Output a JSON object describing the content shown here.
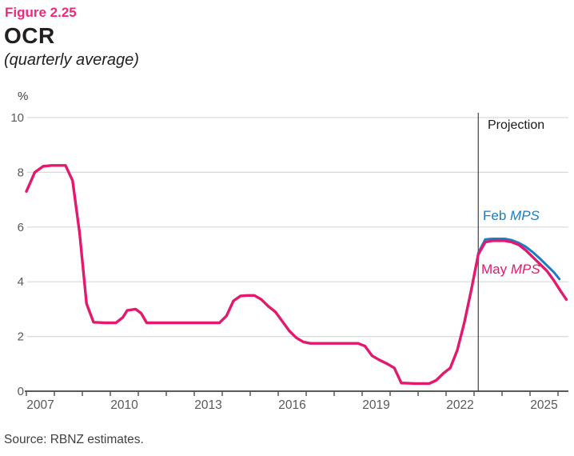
{
  "figure": {
    "number": "Figure 2.25",
    "source": "Source: RBNZ estimates."
  },
  "colors": {
    "figure_number": "#ee2a7b",
    "title_text": "#231f20",
    "axis_text": "#58595b",
    "axis_line": "#58595b",
    "gridline": "#d9d9d9",
    "projection_line": "#414042",
    "feb_mps_blue": "#1b7dc4",
    "may_mps_pink": "#e4186c"
  },
  "chart_data": {
    "type": "line",
    "title": "OCR",
    "subtitle": "(quarterly average)",
    "ylabel": "%",
    "ylim": [
      0,
      10
    ],
    "y_ticks": [
      0,
      2,
      4,
      6,
      8,
      10
    ],
    "xlim": [
      2006.95,
      2026.4
    ],
    "x_ticks_years": [
      2007,
      2008,
      2009,
      2010,
      2011,
      2012,
      2013,
      2014,
      2015,
      2016,
      2017,
      2018,
      2019,
      2020,
      2021,
      2022,
      2023,
      2024,
      2025,
      2026
    ],
    "x_labels": [
      {
        "year": 2007,
        "label": "2007"
      },
      {
        "year": 2010,
        "label": "2010"
      },
      {
        "year": 2013,
        "label": "2013"
      },
      {
        "year": 2016,
        "label": "2016"
      },
      {
        "year": 2019,
        "label": "2019"
      },
      {
        "year": 2022,
        "label": "2022"
      },
      {
        "year": 2025,
        "label": "2025"
      }
    ],
    "grid": "horizontal",
    "legend_position": "inline-annotations",
    "projection": {
      "x": 2023.15,
      "label": "Projection"
    },
    "series": [
      {
        "name": "Feb MPS",
        "label_prefix": "Feb ",
        "label_italic": "MPS",
        "color": "#1b7dc4",
        "stroke_width": 3,
        "points": [
          [
            2023.15,
            5.05
          ],
          [
            2023.4,
            5.55
          ],
          [
            2023.65,
            5.57
          ],
          [
            2024.1,
            5.57
          ],
          [
            2024.35,
            5.52
          ],
          [
            2024.6,
            5.42
          ],
          [
            2024.85,
            5.28
          ],
          [
            2025.1,
            5.08
          ],
          [
            2025.35,
            4.85
          ],
          [
            2025.6,
            4.6
          ],
          [
            2025.85,
            4.35
          ],
          [
            2026.05,
            4.1
          ]
        ]
      },
      {
        "name": "May MPS",
        "label_prefix": "May ",
        "label_italic": "MPS",
        "color": "#e4186c",
        "stroke_width": 3.4,
        "points": [
          [
            2007.0,
            7.3
          ],
          [
            2007.3,
            8.0
          ],
          [
            2007.6,
            8.22
          ],
          [
            2007.9,
            8.25
          ],
          [
            2008.4,
            8.25
          ],
          [
            2008.65,
            7.7
          ],
          [
            2008.9,
            5.8
          ],
          [
            2009.15,
            3.2
          ],
          [
            2009.4,
            2.52
          ],
          [
            2009.8,
            2.5
          ],
          [
            2010.2,
            2.5
          ],
          [
            2010.45,
            2.7
          ],
          [
            2010.6,
            2.95
          ],
          [
            2010.9,
            3.0
          ],
          [
            2011.1,
            2.85
          ],
          [
            2011.3,
            2.5
          ],
          [
            2012.0,
            2.5
          ],
          [
            2013.0,
            2.5
          ],
          [
            2013.9,
            2.5
          ],
          [
            2014.15,
            2.75
          ],
          [
            2014.4,
            3.3
          ],
          [
            2014.65,
            3.48
          ],
          [
            2014.9,
            3.5
          ],
          [
            2015.15,
            3.5
          ],
          [
            2015.4,
            3.35
          ],
          [
            2015.65,
            3.1
          ],
          [
            2015.9,
            2.9
          ],
          [
            2016.15,
            2.55
          ],
          [
            2016.4,
            2.2
          ],
          [
            2016.65,
            1.95
          ],
          [
            2016.9,
            1.8
          ],
          [
            2017.15,
            1.75
          ],
          [
            2018.0,
            1.75
          ],
          [
            2018.85,
            1.75
          ],
          [
            2019.1,
            1.65
          ],
          [
            2019.35,
            1.3
          ],
          [
            2019.6,
            1.15
          ],
          [
            2019.9,
            1.0
          ],
          [
            2020.15,
            0.85
          ],
          [
            2020.4,
            0.3
          ],
          [
            2020.9,
            0.28
          ],
          [
            2021.4,
            0.28
          ],
          [
            2021.65,
            0.4
          ],
          [
            2021.9,
            0.65
          ],
          [
            2022.15,
            0.85
          ],
          [
            2022.4,
            1.5
          ],
          [
            2022.65,
            2.5
          ],
          [
            2022.9,
            3.7
          ],
          [
            2023.15,
            5.0
          ],
          [
            2023.4,
            5.45
          ],
          [
            2023.65,
            5.5
          ],
          [
            2024.1,
            5.5
          ],
          [
            2024.35,
            5.45
          ],
          [
            2024.6,
            5.35
          ],
          [
            2024.85,
            5.15
          ],
          [
            2025.1,
            4.9
          ],
          [
            2025.35,
            4.65
          ],
          [
            2025.6,
            4.4
          ],
          [
            2025.85,
            4.05
          ],
          [
            2026.1,
            3.65
          ],
          [
            2026.3,
            3.35
          ]
        ]
      }
    ]
  }
}
